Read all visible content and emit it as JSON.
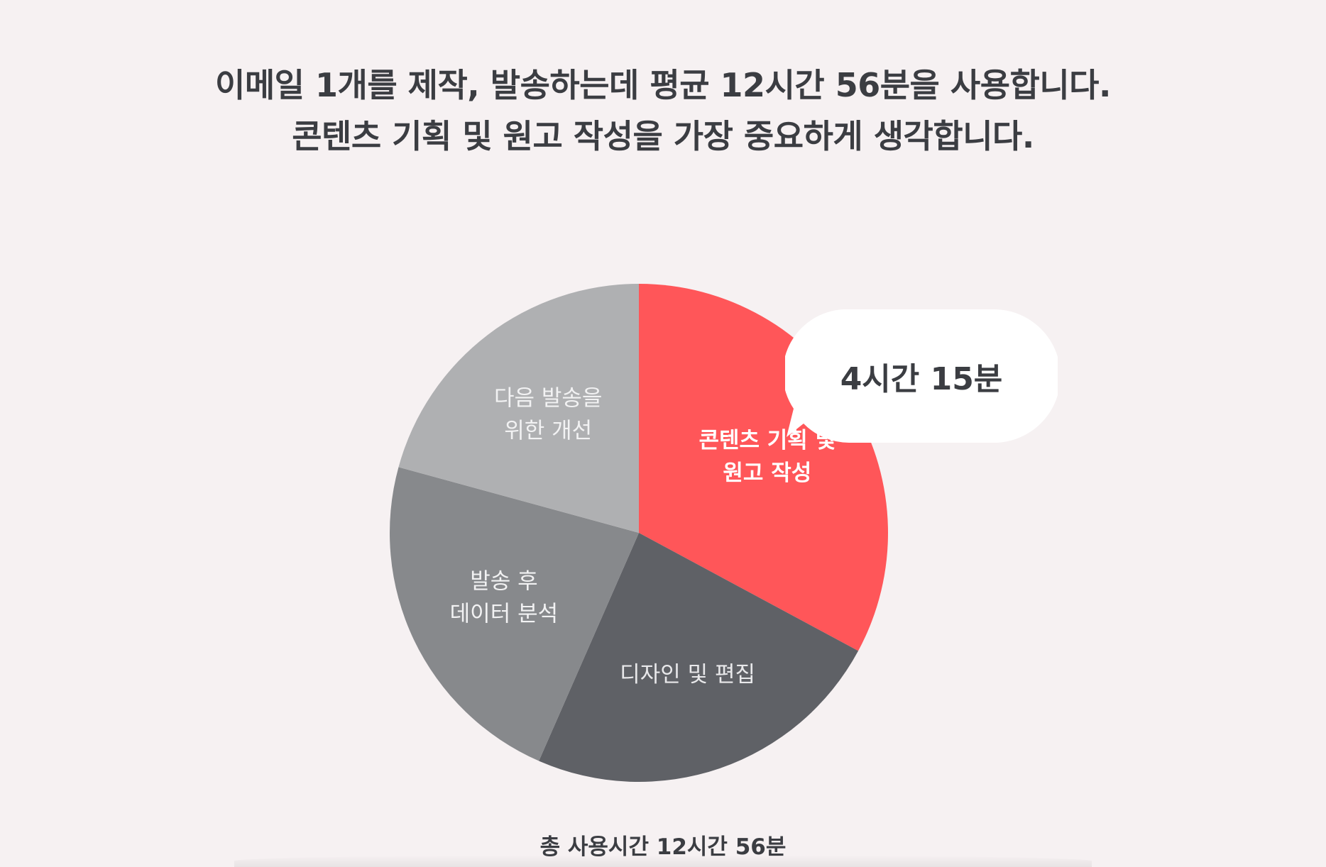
{
  "headline": {
    "line1": "이메일 1개를 제작, 발송하는데 평균 12시간 56분을 사용합니다.",
    "line2": "콘텐츠 기획 및 원고 작성을 가장 중요하게 생각합니다."
  },
  "chart_data": {
    "type": "pie",
    "total_label": "총 사용시간 12시간 56분",
    "total_minutes": 776,
    "highlight": {
      "slice_index": 0,
      "callout": "4시간 15분"
    },
    "slices": [
      {
        "label_lines": [
          "콘텐츠 기획 및",
          "원고 작성"
        ],
        "value": 255,
        "color": "#ff5659",
        "label_color": "#ffffff",
        "label_bold": true
      },
      {
        "label_lines": [
          "디자인 및 편집"
        ],
        "value": 184,
        "color": "#5f6166",
        "label_color": "#e8e8ea",
        "label_bold": false
      },
      {
        "label_lines": [
          "발송 후",
          "데이터 분석"
        ],
        "value": 176,
        "color": "#87898c",
        "label_color": "#f2f2f3",
        "label_bold": false
      },
      {
        "label_lines": [
          "다음 발송을",
          "위한 개선"
        ],
        "value": 161,
        "color": "#afb0b2",
        "label_color": "#f2f2f3",
        "label_bold": false
      }
    ]
  }
}
